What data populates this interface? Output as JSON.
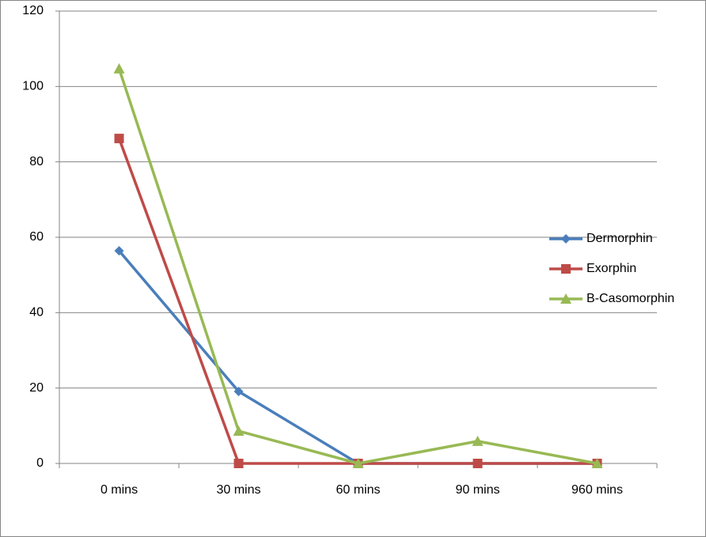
{
  "chart_data": {
    "type": "line",
    "categories": [
      "0 mins",
      "30 mins",
      "60 mins",
      "90 mins",
      "960 mins"
    ],
    "series": [
      {
        "name": "Dermorphin",
        "color": "#4a7ebb",
        "marker": "diamond",
        "values": [
          56.4,
          19.1,
          0,
          0,
          0
        ]
      },
      {
        "name": "Exorphin",
        "color": "#be4b48",
        "marker": "square",
        "values": [
          86.2,
          0,
          0,
          0,
          0
        ]
      },
      {
        "name": "B-Casomorphin",
        "color": "#98b954",
        "marker": "triangle",
        "values": [
          104.7,
          8.6,
          0,
          5.9,
          0
        ]
      }
    ],
    "ylim": [
      0,
      120
    ],
    "yticks": [
      0,
      20,
      40,
      60,
      80,
      100,
      120
    ],
    "grid": true,
    "legend": "right"
  }
}
